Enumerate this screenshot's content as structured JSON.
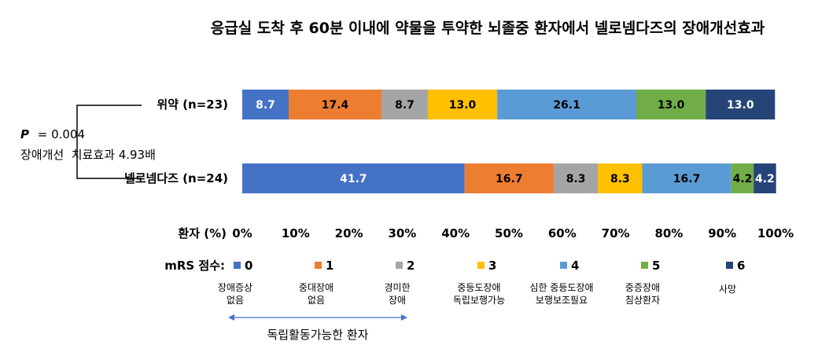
{
  "chart_data": {
    "type": "bar",
    "orientation": "horizontal-stacked",
    "title": "응급실 도착 후 60분 이내에 약물을 투약한 뇌졸중 환자에서 넬로넴다즈의 장애개선효과",
    "categories": [
      "위약 (n=23)",
      "넬로넴다즈 (n=24)"
    ],
    "xlabel": "환자 (%)",
    "xlim": [
      0,
      100
    ],
    "xticks": [
      "0%",
      "10%",
      "20%",
      "30%",
      "40%",
      "50%",
      "60%",
      "70%",
      "80%",
      "90%",
      "100%"
    ],
    "legend_title": "mRS 점수:",
    "series": [
      {
        "name": "0",
        "color": "#4472C4",
        "text_color": "#ffffff",
        "values": [
          8.7,
          41.7
        ],
        "labels": [
          "8.7",
          "41.7"
        ],
        "description": "장애증상 없음"
      },
      {
        "name": "1",
        "color": "#ED7D31",
        "text_color": "#000000",
        "values": [
          17.4,
          16.7
        ],
        "labels": [
          "17.4",
          "16.7"
        ],
        "description": "중대장애 없음"
      },
      {
        "name": "2",
        "color": "#A5A5A5",
        "text_color": "#000000",
        "values": [
          8.7,
          8.3
        ],
        "labels": [
          "8.7",
          "8.3"
        ],
        "description": "경미한 장애"
      },
      {
        "name": "3",
        "color": "#FFC000",
        "text_color": "#000000",
        "values": [
          13.0,
          8.3
        ],
        "labels": [
          "13.0",
          "8.3"
        ],
        "description": "중등도장애 독립보행가능"
      },
      {
        "name": "4",
        "color": "#5B9BD5",
        "text_color": "#000000",
        "values": [
          26.1,
          16.7
        ],
        "labels": [
          "26.1",
          "16.7"
        ],
        "description": "심한 중등도장애 보행보조필요"
      },
      {
        "name": "5",
        "color": "#70AD47",
        "text_color": "#000000",
        "values": [
          13.0,
          4.2
        ],
        "labels": [
          "13.0",
          "4.2"
        ],
        "description": "중증장애 침상환자"
      },
      {
        "name": "6",
        "color": "#264478",
        "text_color": "#ffffff",
        "values": [
          13.0,
          4.2
        ],
        "labels": [
          "13.0",
          "4.2"
        ],
        "description": "사망"
      }
    ],
    "annotations": {
      "p_label": "P",
      "p_value": "= 0.004",
      "effect_text": "장애개선  치료효과 4.93배",
      "range_label": "독립활동가능한 환자"
    },
    "grid": false
  }
}
